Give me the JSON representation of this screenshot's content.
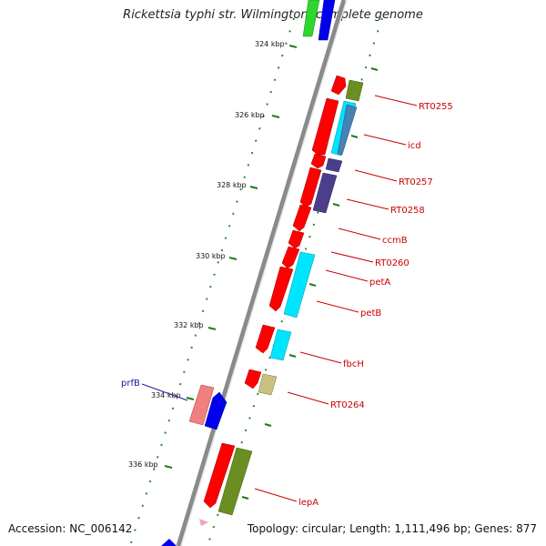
{
  "title": "Rickettsia typhi str. Wilmington, complete genome",
  "footer": {
    "accession": "Accession: NC_006142",
    "topology": "Topology: circular; Length: 1,111,496 bp; Genes: 877"
  },
  "ticks": [
    {
      "label": "324 kbp"
    },
    {
      "label": "326 kbp"
    },
    {
      "label": "328 kbp"
    },
    {
      "label": "330 kbp"
    },
    {
      "label": "332 kbp"
    },
    {
      "label": "334 kbp"
    },
    {
      "label": "336 kbp"
    }
  ],
  "gene_labels": [
    {
      "name": "RT0255",
      "color": "#cc0000"
    },
    {
      "name": "icd",
      "color": "#cc0000"
    },
    {
      "name": "RT0257",
      "color": "#cc0000"
    },
    {
      "name": "RT0258",
      "color": "#cc0000"
    },
    {
      "name": "ccmB",
      "color": "#cc0000"
    },
    {
      "name": "RT0260",
      "color": "#cc0000"
    },
    {
      "name": "petA",
      "color": "#cc0000"
    },
    {
      "name": "petB",
      "color": "#cc0000"
    },
    {
      "name": "fbcH",
      "color": "#cc0000"
    },
    {
      "name": "RT0264",
      "color": "#cc0000"
    },
    {
      "name": "lepA",
      "color": "#cc0000"
    },
    {
      "name": "prfB",
      "color": "#1a1aa6"
    }
  ],
  "colors": {
    "backbone": "#8a8a8a",
    "tick": "#1f7a1f",
    "cds_forward": "#ff0000",
    "cds_reverse": "#0000ee"
  }
}
